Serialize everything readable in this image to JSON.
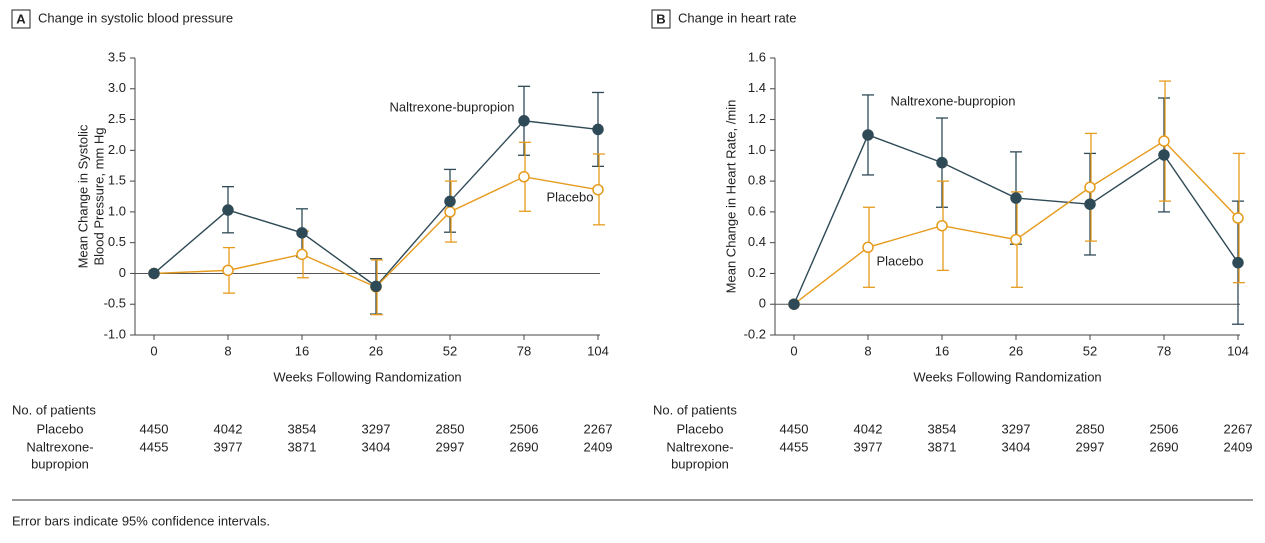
{
  "chart_data": [
    {
      "type": "line",
      "panel": "A",
      "title": "Change in systolic blood pressure",
      "xlabel": "Weeks Following Randomization",
      "ylabel": [
        "Mean Change in Systolic",
        "Blood Pressure, mm Hg"
      ],
      "categories": [
        "0",
        "8",
        "16",
        "26",
        "52",
        "78",
        "104"
      ],
      "ylim": [
        -1,
        3.5
      ],
      "yticks": [
        {
          "value": -1,
          "label": "-1.0"
        },
        -0.5,
        0,
        0.5,
        {
          "value": 1,
          "label": "1.0"
        },
        1.5,
        {
          "value": 2,
          "label": "2.0"
        },
        2.5,
        {
          "value": 3,
          "label": "3.0"
        },
        3.5
      ],
      "series": [
        {
          "name": "Naltrexone-bupropion",
          "color": "#2f4a57",
          "marker": "filled",
          "values": [
            0,
            1.03,
            0.66,
            -0.21,
            1.17,
            2.48,
            2.34
          ],
          "ci_lower": [
            null,
            0.66,
            0.27,
            -0.66,
            0.67,
            1.92,
            1.74
          ],
          "ci_upper": [
            null,
            1.41,
            1.05,
            0.24,
            1.69,
            3.04,
            2.94
          ]
        },
        {
          "name": "Placebo",
          "color": "#e69b1e",
          "marker": "open",
          "values": [
            0,
            0.05,
            0.31,
            -0.22,
            1.0,
            1.57,
            1.36
          ],
          "ci_lower": [
            null,
            -0.32,
            -0.07,
            -0.67,
            0.51,
            1.01,
            0.79
          ],
          "ci_upper": [
            null,
            0.42,
            0.69,
            0.22,
            1.5,
            2.13,
            1.94
          ]
        }
      ],
      "patients": {
        "title": "No. of patients",
        "rows": [
          {
            "label": [
              "Placebo"
            ],
            "counts": [
              4450,
              4042,
              3854,
              3297,
              2850,
              2506,
              2267
            ]
          },
          {
            "label": [
              "Naltrexone-",
              "bupropion"
            ],
            "counts": [
              4455,
              3977,
              3871,
              3404,
              2997,
              2690,
              2409
            ]
          }
        ]
      }
    },
    {
      "type": "line",
      "panel": "B",
      "title": "Change in heart rate",
      "xlabel": "Weeks Following Randomization",
      "ylabel": [
        "Mean Change in Heart Rate, /min"
      ],
      "categories": [
        "0",
        "8",
        "16",
        "26",
        "52",
        "78",
        "104"
      ],
      "ylim": [
        -0.2,
        1.6
      ],
      "yticks": [
        -0.2,
        0,
        0.2,
        0.4,
        0.6,
        0.8,
        {
          "value": 1,
          "label": "1.0"
        },
        1.2,
        1.4,
        1.6
      ],
      "series": [
        {
          "name": "Naltrexone-bupropion",
          "color": "#2f4a57",
          "marker": "filled",
          "values": [
            0,
            1.1,
            0.92,
            0.69,
            0.65,
            0.97,
            0.27
          ],
          "ci_lower": [
            null,
            0.84,
            0.63,
            0.39,
            0.32,
            0.6,
            -0.13
          ],
          "ci_upper": [
            null,
            1.36,
            1.21,
            0.99,
            0.98,
            1.34,
            0.67
          ]
        },
        {
          "name": "Placebo",
          "color": "#e69b1e",
          "marker": "open",
          "values": [
            0,
            0.37,
            0.51,
            0.42,
            0.76,
            1.06,
            0.56
          ],
          "ci_lower": [
            null,
            0.11,
            0.22,
            0.11,
            0.41,
            0.67,
            0.14
          ],
          "ci_upper": [
            null,
            0.63,
            0.8,
            0.73,
            1.11,
            1.45,
            0.98
          ]
        }
      ],
      "patients": {
        "title": "No. of patients",
        "rows": [
          {
            "label": [
              "Placebo"
            ],
            "counts": [
              4450,
              4042,
              3854,
              3297,
              2850,
              2506,
              2267
            ]
          },
          {
            "label": [
              "Naltrexone-",
              "bupropion"
            ],
            "counts": [
              4455,
              3977,
              3871,
              3404,
              2997,
              2690,
              2409
            ]
          }
        ]
      }
    }
  ],
  "footnote": "Error bars indicate 95% confidence intervals."
}
